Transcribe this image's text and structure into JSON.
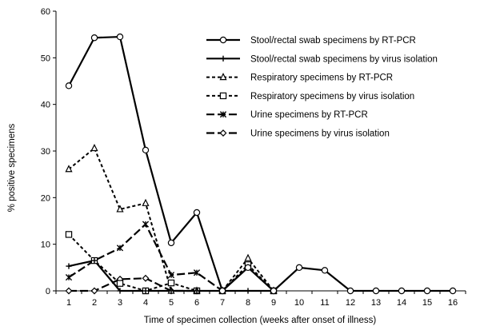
{
  "chart_data": {
    "type": "line",
    "xlabel": "Time of specimen collection (weeks after onset of illness)",
    "ylabel": "% positive specimens",
    "x": [
      1,
      2,
      3,
      4,
      5,
      6,
      7,
      8,
      9,
      10,
      11,
      12,
      13,
      14,
      15,
      16
    ],
    "xlim": [
      1,
      16
    ],
    "ylim": [
      0,
      60
    ],
    "yticks": [
      0,
      10,
      20,
      30,
      40,
      50,
      60
    ],
    "grid": false,
    "legend_position": "top-right",
    "series": [
      {
        "name": "Stool/rectal swab specimens by RT-PCR",
        "marker": "circle",
        "line": "solid-thick",
        "x": [
          1,
          2,
          3,
          4,
          5,
          6,
          7,
          8,
          9,
          10,
          11,
          12,
          13,
          14,
          15,
          16
        ],
        "values": [
          44,
          54.3,
          54.5,
          30.2,
          10.3,
          16.8,
          0,
          5,
          0,
          5,
          4.4,
          0,
          0,
          0,
          0,
          0
        ]
      },
      {
        "name": "Stool/rectal swab specimens by virus isolation",
        "marker": "plus",
        "line": "solid-thick",
        "x": [
          1,
          2,
          3,
          4,
          5,
          6,
          7,
          8,
          9
        ],
        "values": [
          5.3,
          6.5,
          0,
          0,
          0,
          0,
          0,
          0,
          0
        ]
      },
      {
        "name": "Respiratory specimens by RT-PCR",
        "marker": "triangle",
        "line": "short-dash",
        "x": [
          1,
          2,
          3,
          4,
          5,
          6,
          7,
          8,
          9
        ],
        "values": [
          26.1,
          30.6,
          17.5,
          18.8,
          0,
          0,
          0,
          7,
          0
        ]
      },
      {
        "name": "Respiratory specimens by virus isolation",
        "marker": "square",
        "line": "short-dash",
        "x": [
          1,
          2,
          3,
          4,
          5,
          6,
          7,
          8,
          9
        ],
        "values": [
          12.1,
          6.5,
          1.6,
          0,
          1.7,
          0,
          0,
          5.6,
          0
        ]
      },
      {
        "name": "Urine specimens by RT-PCR",
        "marker": "star",
        "line": "long-dash",
        "x": [
          1,
          2,
          3,
          4,
          5,
          6,
          7
        ],
        "values": [
          2.9,
          6.5,
          9.2,
          14.3,
          3.4,
          3.9,
          0
        ]
      },
      {
        "name": "Urine specimens by virus isolation",
        "marker": "diamond",
        "line": "long-dash",
        "x": [
          1,
          2,
          3,
          4,
          5,
          6
        ],
        "values": [
          0,
          0,
          2.5,
          2.7,
          0,
          0
        ]
      }
    ]
  }
}
